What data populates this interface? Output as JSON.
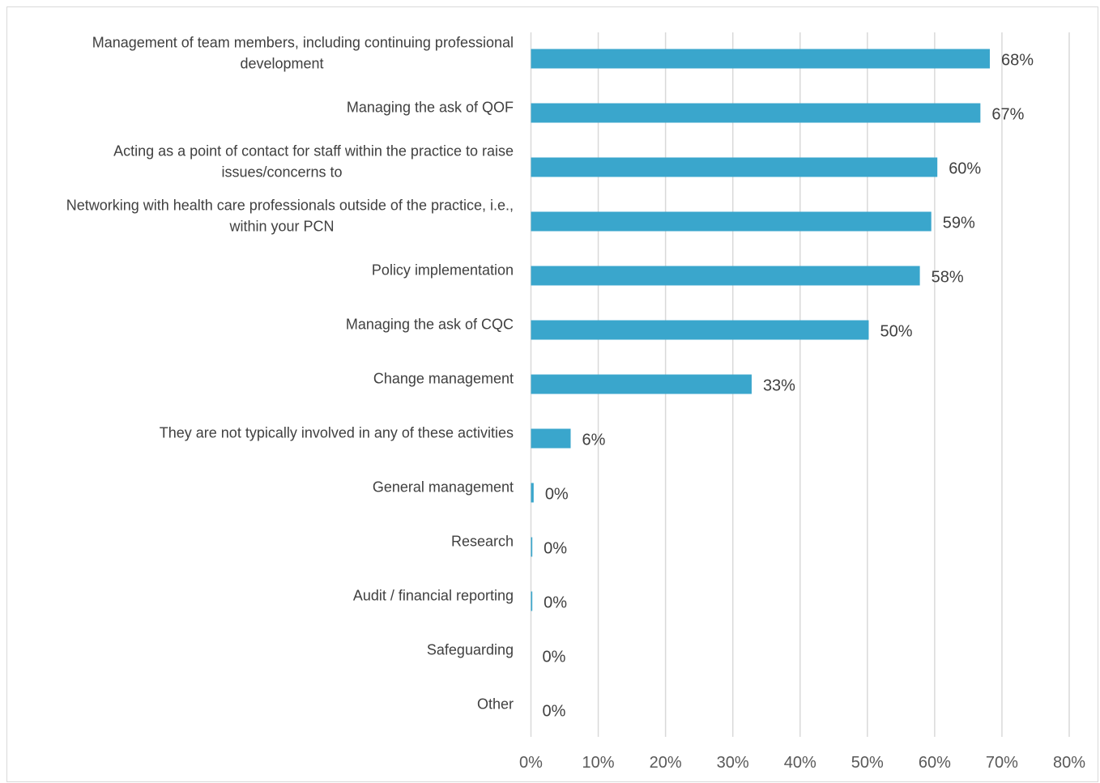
{
  "chart_data": {
    "type": "bar",
    "orientation": "horizontal",
    "title": "",
    "xlabel": "",
    "ylabel": "",
    "xlim": [
      0,
      0.8
    ],
    "grid": true,
    "legend": "none",
    "bar_color": "#3AA6CC",
    "grid_color": "#D9D9D9",
    "categories": [
      [
        "Management of team members, including continuing professional",
        "development"
      ],
      [
        "Managing the ask of QOF"
      ],
      [
        "Acting as a point of contact for staff within the practice to raise",
        "issues/concerns to"
      ],
      [
        "Networking with health care professionals outside of the practice, i.e.,",
        "within your PCN"
      ],
      [
        "Policy implementation"
      ],
      [
        "Managing the ask of CQC"
      ],
      [
        "Change management"
      ],
      [
        "They are not typically involved in any of these activities"
      ],
      [
        "General management"
      ],
      [
        "Research"
      ],
      [
        "Audit / financial reporting"
      ],
      [
        "Safeguarding"
      ],
      [
        "Other"
      ]
    ],
    "values": [
      0.682,
      0.668,
      0.604,
      0.595,
      0.578,
      0.502,
      0.328,
      0.059,
      0.004,
      0.002,
      0.002,
      0.0,
      0.0
    ],
    "value_labels": [
      "68%",
      "67%",
      "60%",
      "59%",
      "58%",
      "50%",
      "33%",
      "6%",
      "0%",
      "0%",
      "0%",
      "0%",
      "0%"
    ],
    "ticks": [
      0,
      0.1,
      0.2,
      0.3,
      0.4,
      0.5,
      0.6,
      0.7,
      0.8
    ],
    "tick_labels": [
      "0%",
      "10%",
      "20%",
      "30%",
      "40%",
      "50%",
      "60%",
      "70%",
      "80%"
    ]
  }
}
